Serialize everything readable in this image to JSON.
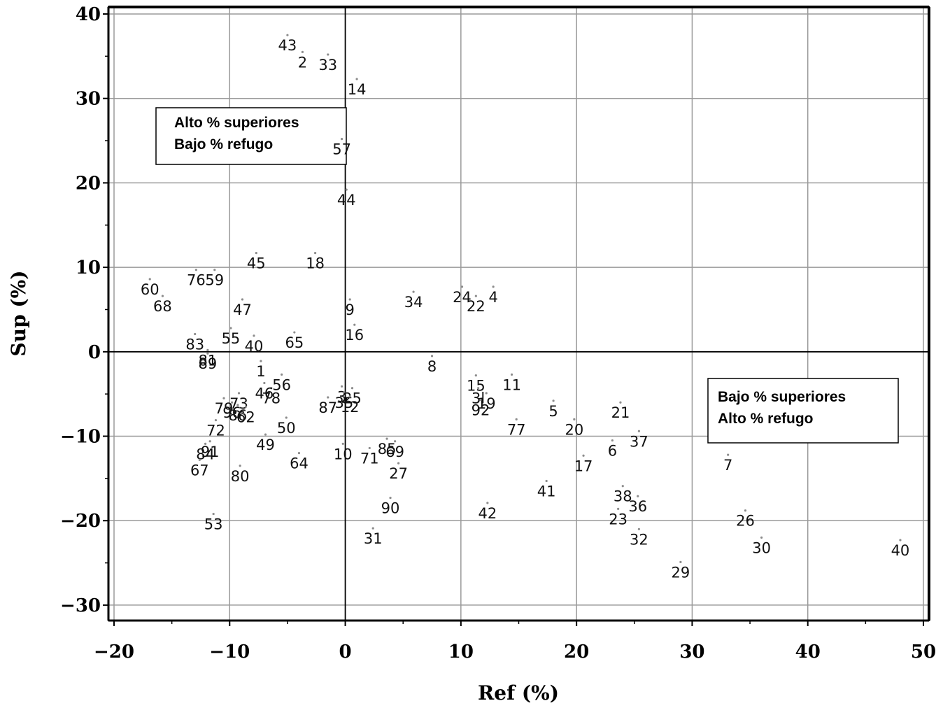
{
  "chart_data": {
    "type": "scatter",
    "xlabel": "Ref (%)",
    "ylabel": "Sup (%)",
    "xlim": [
      -20,
      50
    ],
    "ylim": [
      -31,
      40
    ],
    "xticks": [
      -20,
      -10,
      0,
      10,
      20,
      30,
      40,
      50
    ],
    "yticks": [
      40,
      30,
      20,
      10,
      0,
      -10,
      -20,
      -30
    ],
    "grid": true,
    "reference_lines": {
      "x": 0,
      "y": 0
    },
    "annotations": [
      {
        "lines": [
          "Alto % superiores",
          "Bajo % refugo"
        ],
        "position": "upper-left"
      },
      {
        "lines": [
          "Bajo % superiores",
          "Alto % refugo"
        ],
        "position": "lower-right"
      }
    ],
    "points": [
      {
        "label": "43",
        "x": -5,
        "y": 37.5
      },
      {
        "label": "2",
        "x": -3.7,
        "y": 35.5
      },
      {
        "label": "33",
        "x": -1.5,
        "y": 35.2
      },
      {
        "label": "14",
        "x": 1,
        "y": 32.3
      },
      {
        "label": "57",
        "x": -0.3,
        "y": 25.2
      },
      {
        "label": "44",
        "x": 0.1,
        "y": 19.2
      },
      {
        "label": "45",
        "x": -7.7,
        "y": 11.7
      },
      {
        "label": "18",
        "x": -2.6,
        "y": 11.7
      },
      {
        "label": "60",
        "x": -16.9,
        "y": 8.6
      },
      {
        "label": "76",
        "x": -12.9,
        "y": 9.7
      },
      {
        "label": "59",
        "x": -11.3,
        "y": 9.7
      },
      {
        "label": "68",
        "x": -15.8,
        "y": 6.6
      },
      {
        "label": "47",
        "x": -8.9,
        "y": 6.2
      },
      {
        "label": "34",
        "x": 5.9,
        "y": 7.1
      },
      {
        "label": "24",
        "x": 10.1,
        "y": 7.7
      },
      {
        "label": "4",
        "x": 12.8,
        "y": 7.7
      },
      {
        "label": "22",
        "x": 11.3,
        "y": 6.6
      },
      {
        "label": "9",
        "x": 0.4,
        "y": 6.2
      },
      {
        "label": "16",
        "x": 0.8,
        "y": 3.2
      },
      {
        "label": "55",
        "x": -9.9,
        "y": 2.8
      },
      {
        "label": "83",
        "x": -13,
        "y": 2.1
      },
      {
        "label": "40",
        "x": -7.9,
        "y": 1.9
      },
      {
        "label": "65",
        "x": -4.4,
        "y": 2.3
      },
      {
        "label": "81",
        "x": -11.9,
        "y": 0.2
      },
      {
        "label": "89",
        "x": -11.9,
        "y": -0.2
      },
      {
        "label": "1",
        "x": -7.3,
        "y": -1.1
      },
      {
        "label": "56",
        "x": -5.5,
        "y": -2.7
      },
      {
        "label": "8",
        "x": 7.5,
        "y": -0.5
      },
      {
        "label": "78",
        "x": -6.4,
        "y": -4.3
      },
      {
        "label": "46",
        "x": -7,
        "y": -3.7
      },
      {
        "label": "73",
        "x": -9.2,
        "y": -4.9
      },
      {
        "label": "3",
        "x": -0.3,
        "y": -4.1
      },
      {
        "label": "35",
        "x": -0.1,
        "y": -4.8
      },
      {
        "label": "25",
        "x": 0.6,
        "y": -4.3
      },
      {
        "label": "12",
        "x": 0.4,
        "y": -5.3
      },
      {
        "label": "87",
        "x": -1.5,
        "y": -5.4
      },
      {
        "label": "79",
        "x": -10.5,
        "y": -5.5
      },
      {
        "label": "96",
        "x": -9.8,
        "y": -6
      },
      {
        "label": "86",
        "x": -9.3,
        "y": -6.3
      },
      {
        "label": "62",
        "x": -8.6,
        "y": -6.5
      },
      {
        "label": "15",
        "x": 11.3,
        "y": -2.8
      },
      {
        "label": "3l",
        "x": 11.5,
        "y": -4.3
      },
      {
        "label": "19",
        "x": 12.2,
        "y": -4.9
      },
      {
        "label": "92",
        "x": 11.7,
        "y": -5.7
      },
      {
        "label": "11",
        "x": 14.4,
        "y": -2.7
      },
      {
        "label": "5",
        "x": 18,
        "y": -5.8
      },
      {
        "label": "21",
        "x": 23.8,
        "y": -6
      },
      {
        "label": "77",
        "x": 14.8,
        "y": -8
      },
      {
        "label": "20",
        "x": 19.8,
        "y": -8
      },
      {
        "label": "37",
        "x": 25.4,
        "y": -9.4
      },
      {
        "label": "6",
        "x": 23.1,
        "y": -10.5
      },
      {
        "label": "17",
        "x": 20.6,
        "y": -12.3
      },
      {
        "label": "7",
        "x": 33.1,
        "y": -12.2
      },
      {
        "label": "72",
        "x": -11.2,
        "y": -8.1
      },
      {
        "label": "50",
        "x": -5.1,
        "y": -7.8
      },
      {
        "label": "49",
        "x": -6.9,
        "y": -9.8
      },
      {
        "label": "91",
        "x": -11.7,
        "y": -10.6
      },
      {
        "label": "84",
        "x": -12.1,
        "y": -10.9
      },
      {
        "label": "67",
        "x": -12.6,
        "y": -12.8
      },
      {
        "label": "80",
        "x": -9.1,
        "y": -13.5
      },
      {
        "label": "64",
        "x": -4,
        "y": -12
      },
      {
        "label": "10",
        "x": -0.2,
        "y": -10.9
      },
      {
        "label": "71",
        "x": 2.1,
        "y": -11.4
      },
      {
        "label": "85",
        "x": 3.6,
        "y": -10.3
      },
      {
        "label": "69",
        "x": 4.3,
        "y": -10.6
      },
      {
        "label": "27",
        "x": 4.6,
        "y": -13.2
      },
      {
        "label": "90",
        "x": 3.9,
        "y": -17.3
      },
      {
        "label": "31",
        "x": 2.4,
        "y": -20.9
      },
      {
        "label": "53",
        "x": -11.4,
        "y": -19.2
      },
      {
        "label": "41",
        "x": 17.4,
        "y": -15.3
      },
      {
        "label": "42",
        "x": 12.3,
        "y": -17.9
      },
      {
        "label": "38",
        "x": 24,
        "y": -15.9
      },
      {
        "label": "36",
        "x": 25.3,
        "y": -17.1
      },
      {
        "label": "23",
        "x": 23.6,
        "y": -18.6
      },
      {
        "label": "32",
        "x": 25.4,
        "y": -21
      },
      {
        "label": "26",
        "x": 34.6,
        "y": -18.8
      },
      {
        "label": "30",
        "x": 36,
        "y": -22
      },
      {
        "label": "29",
        "x": 29,
        "y": -24.9
      },
      {
        "label": "40",
        "x": 48,
        "y": -22.3
      }
    ]
  }
}
